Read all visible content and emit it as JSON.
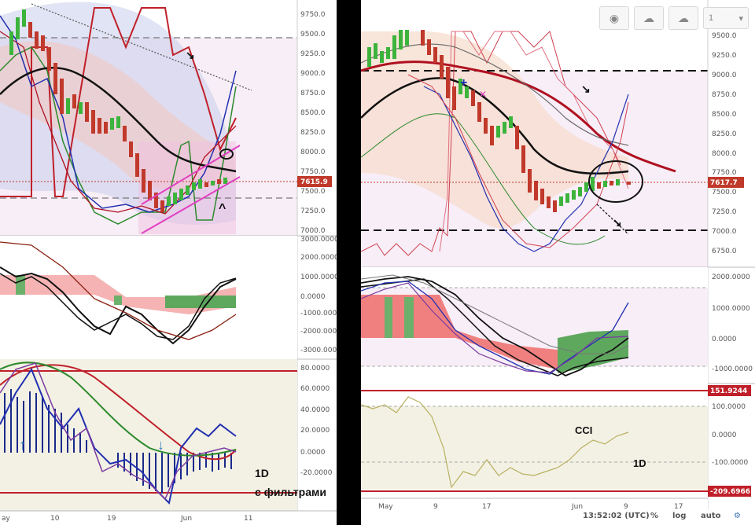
{
  "left": {
    "price_axis": [
      "9750.0",
      "9500.0",
      "9250.0",
      "9000.0",
      "8750.0",
      "8500.0",
      "8250.0",
      "8000.0",
      "7750.0",
      "7500.0",
      "7250.0",
      "7000.0"
    ],
    "price_tag": "7615.9",
    "osc_axis": [
      "3000.0000",
      "2000.0000",
      "1000.0000",
      "0.0000",
      "-1000.0000",
      "-2000.0000",
      "-3000.0000"
    ],
    "ind_axis": [
      "80.0000",
      "60.0000",
      "40.0000",
      "20.0000",
      "0.0000",
      "-20.0000"
    ],
    "x_axis": [
      "ay",
      "10",
      "19",
      "Jun",
      "11"
    ],
    "note_tf": "1D",
    "note_filters": "с фильтрами"
  },
  "right": {
    "toolbar": {
      "timeframe": "1"
    },
    "price_axis": [
      "9500.0",
      "9250.0",
      "9000.0",
      "8750.0",
      "8500.0",
      "8250.0",
      "8000.0",
      "7750.0",
      "7500.0",
      "7250.0",
      "7000.0",
      "6750.0"
    ],
    "price_tag": "7617.7",
    "osc_axis": [
      "2000.0000",
      "1000.0000",
      "0.0000",
      "-1000.0000"
    ],
    "cci_tag": "151.9244",
    "cci_axis": [
      "100.0000",
      "0.0000",
      "-100.0000"
    ],
    "cci_tag_low": "-209.6966",
    "cci_label": "CCI",
    "tf_label": "1D",
    "x_axis": [
      "May",
      "9",
      "17",
      "Jun",
      "9",
      "17"
    ],
    "status": {
      "time": "13:52:02 (UTC)",
      "percent": "%",
      "log": "log",
      "auto": "auto"
    }
  },
  "colors": {
    "up": "#3cb43c",
    "down": "#c0392b",
    "ma": "#111111",
    "red_line": "#c0202a"
  }
}
